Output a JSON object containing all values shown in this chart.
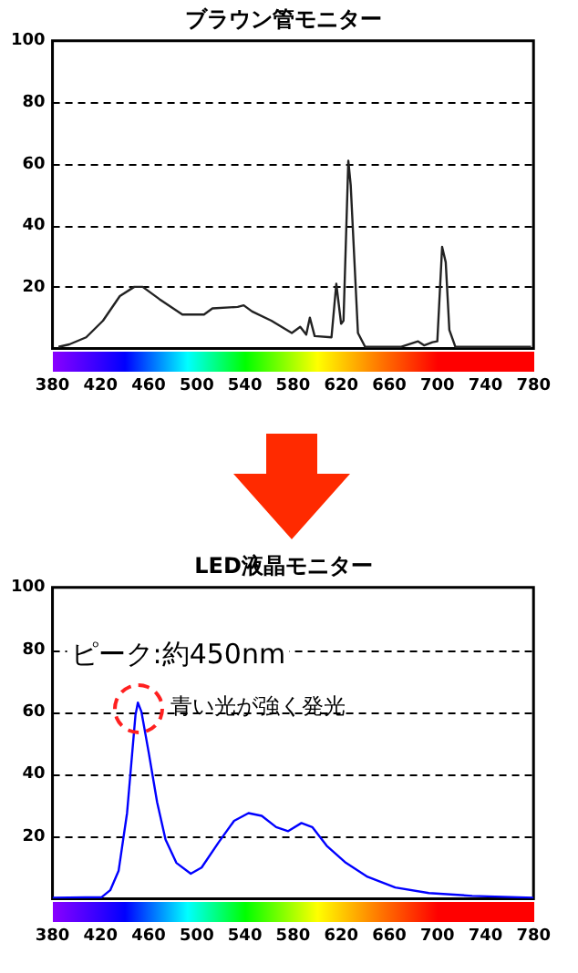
{
  "chart_data": [
    {
      "type": "line",
      "title": "ブラウン管モニター",
      "color": "#222222",
      "marker": "none",
      "grid": "y",
      "xlim": [
        380,
        780
      ],
      "xticks": [
        380,
        420,
        460,
        500,
        540,
        580,
        620,
        660,
        700,
        740,
        780
      ],
      "ylim": [
        0,
        100
      ],
      "yticks": [
        20,
        40,
        60,
        80,
        100
      ],
      "x": [
        385,
        394,
        408,
        422,
        436,
        448,
        455,
        469,
        488,
        506,
        513,
        534,
        539,
        546,
        562,
        579,
        586,
        591,
        594,
        598,
        612,
        616,
        620,
        622,
        626,
        628,
        634,
        640,
        670,
        684,
        689,
        696,
        700,
        704,
        707,
        710,
        715,
        778
      ],
      "values": [
        0.5,
        1.3,
        3.6,
        9,
        17,
        20,
        20,
        16,
        11,
        11,
        13,
        13.5,
        14,
        12,
        9,
        5,
        7,
        4.5,
        10,
        4,
        3.6,
        21,
        8,
        9,
        61,
        53,
        5,
        0.5,
        0.5,
        2.3,
        1,
        2,
        2.3,
        33,
        28,
        6,
        0.5,
        0.5
      ]
    },
    {
      "type": "line",
      "title": "LED液晶モニター",
      "color": "#0000ff",
      "marker": "none",
      "grid": "y",
      "xlim": [
        380,
        780
      ],
      "xticks": [
        380,
        420,
        460,
        500,
        540,
        580,
        620,
        660,
        700,
        740,
        780
      ],
      "ylim": [
        0,
        100
      ],
      "yticks": [
        20,
        40,
        60,
        80,
        100
      ],
      "x": [
        380,
        421,
        428,
        435,
        442,
        449,
        451,
        454,
        460,
        467,
        474,
        483,
        495,
        504,
        518,
        531,
        543,
        554,
        566,
        576,
        587,
        596,
        608,
        624,
        642,
        665,
        693,
        729,
        780
      ],
      "values": [
        0.3,
        0.5,
        2.7,
        9,
        27.5,
        59,
        63,
        60,
        47,
        31,
        19,
        11.5,
        8,
        10,
        18,
        25,
        27.5,
        26.6,
        23,
        21.7,
        24.3,
        23,
        17,
        11.5,
        7,
        3.6,
        1.8,
        0.9,
        0.3
      ],
      "annotations": [
        "ピーク:約450nm",
        {
          "text": "青い光が強く発光",
          "x": 451,
          "y": 63
        }
      ]
    }
  ]
}
